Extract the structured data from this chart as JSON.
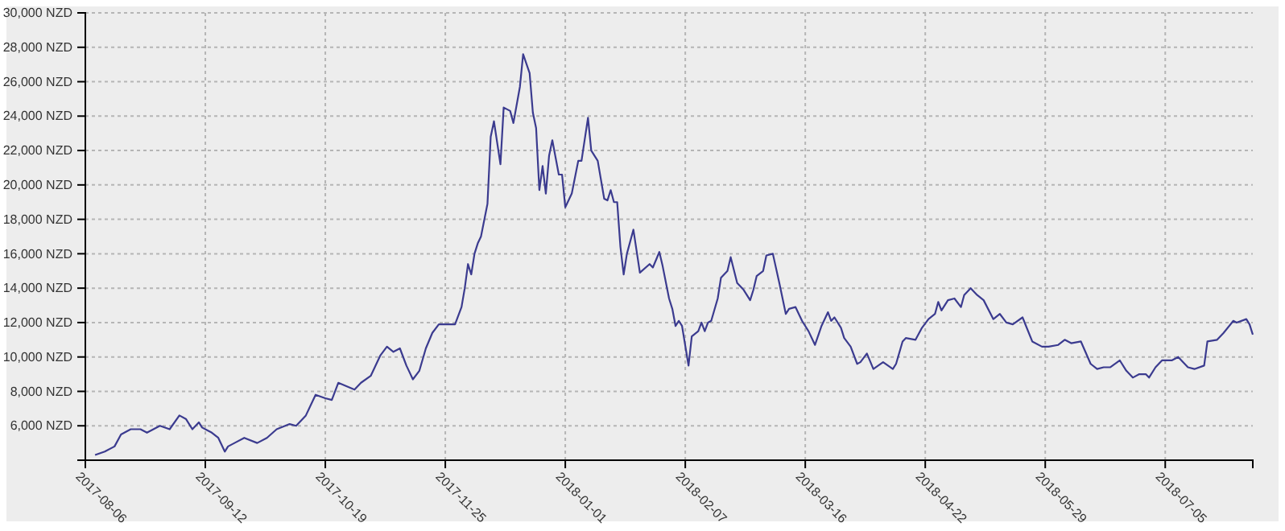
{
  "chart_data": {
    "type": "line",
    "grid": true,
    "line_style": "solid",
    "marker": "none",
    "xlim": [
      "2017-08-06",
      "2018-08-01"
    ],
    "xticks": [
      {
        "value": "2017-08-06",
        "label": "2017-08-06"
      },
      {
        "value": "2017-09-12",
        "label": "2017-09-12"
      },
      {
        "value": "2017-10-19",
        "label": "2017-10-19"
      },
      {
        "value": "2017-11-25",
        "label": "2017-11-25"
      },
      {
        "value": "2018-01-01",
        "label": "2018-01-01"
      },
      {
        "value": "2018-02-07",
        "label": "2018-02-07"
      },
      {
        "value": "2018-03-16",
        "label": "2018-03-16"
      },
      {
        "value": "2018-04-22",
        "label": "2018-04-22"
      },
      {
        "value": "2018-05-29",
        "label": "2018-05-29"
      },
      {
        "value": "2018-07-05",
        "label": "2018-07-05"
      }
    ],
    "ylim": [
      4000,
      30000
    ],
    "yticks": [
      {
        "value": 6000,
        "label": "6,000 NZD"
      },
      {
        "value": 8000,
        "label": "8,000 NZD"
      },
      {
        "value": 10000,
        "label": "10,000 NZD"
      },
      {
        "value": 12000,
        "label": "12,000 NZD"
      },
      {
        "value": 14000,
        "label": "14,000 NZD"
      },
      {
        "value": 16000,
        "label": "16,000 NZD"
      },
      {
        "value": 18000,
        "label": "18,000 NZD"
      },
      {
        "value": 20000,
        "label": "20,000 NZD"
      },
      {
        "value": 22000,
        "label": "22,000 NZD"
      },
      {
        "value": 24000,
        "label": "24,000 NZD"
      },
      {
        "value": 26000,
        "label": "26,000 NZD"
      },
      {
        "value": 28000,
        "label": "28,000 NZD"
      },
      {
        "value": 30000,
        "label": "30,000 NZD"
      }
    ],
    "series": [
      {
        "color": "#3b3b8f",
        "x": [
          "2017-08-09",
          "2017-08-12",
          "2017-08-15",
          "2017-08-17",
          "2017-08-20",
          "2017-08-23",
          "2017-08-25",
          "2017-08-27",
          "2017-08-29",
          "2017-09-01",
          "2017-09-04",
          "2017-09-06",
          "2017-09-08",
          "2017-09-10",
          "2017-09-11",
          "2017-09-14",
          "2017-09-16",
          "2017-09-18",
          "2017-09-19",
          "2017-09-21",
          "2017-09-24",
          "2017-09-28",
          "2017-10-01",
          "2017-10-04",
          "2017-10-08",
          "2017-10-10",
          "2017-10-13",
          "2017-10-16",
          "2017-10-19",
          "2017-10-21",
          "2017-10-23",
          "2017-10-28",
          "2017-10-30",
          "2017-11-02",
          "2017-11-05",
          "2017-11-07",
          "2017-11-09",
          "2017-11-11",
          "2017-11-13",
          "2017-11-15",
          "2017-11-17",
          "2017-11-19",
          "2017-11-21",
          "2017-11-23",
          "2017-11-26",
          "2017-11-28",
          "2017-11-30",
          "2017-12-01",
          "2017-12-02",
          "2017-12-03",
          "2017-12-04",
          "2017-12-05",
          "2017-12-06",
          "2017-12-08",
          "2017-12-09",
          "2017-12-10",
          "2017-12-12",
          "2017-12-13",
          "2017-12-15",
          "2017-12-16",
          "2017-12-18",
          "2017-12-19",
          "2017-12-21",
          "2017-12-22",
          "2017-12-23",
          "2017-12-24",
          "2017-12-25",
          "2017-12-26",
          "2017-12-27",
          "2017-12-28",
          "2017-12-30",
          "2017-12-31",
          "2018-01-01",
          "2018-01-03",
          "2018-01-05",
          "2018-01-06",
          "2018-01-08",
          "2018-01-09",
          "2018-01-11",
          "2018-01-13",
          "2018-01-14",
          "2018-01-15",
          "2018-01-16",
          "2018-01-17",
          "2018-01-18",
          "2018-01-19",
          "2018-01-20",
          "2018-01-22",
          "2018-01-24",
          "2018-01-27",
          "2018-01-28",
          "2018-01-30",
          "2018-01-31",
          "2018-02-02",
          "2018-02-03",
          "2018-02-04",
          "2018-02-05",
          "2018-02-06",
          "2018-02-08",
          "2018-02-09",
          "2018-02-11",
          "2018-02-12",
          "2018-02-13",
          "2018-02-14",
          "2018-02-15",
          "2018-02-17",
          "2018-02-18",
          "2018-02-20",
          "2018-02-21",
          "2018-02-23",
          "2018-02-25",
          "2018-02-27",
          "2018-02-28",
          "2018-03-01",
          "2018-03-03",
          "2018-03-04",
          "2018-03-06",
          "2018-03-08",
          "2018-03-10",
          "2018-03-11",
          "2018-03-13",
          "2018-03-15",
          "2018-03-17",
          "2018-03-19",
          "2018-03-21",
          "2018-03-23",
          "2018-03-24",
          "2018-03-25",
          "2018-03-27",
          "2018-03-28",
          "2018-03-30",
          "2018-04-01",
          "2018-04-02",
          "2018-04-04",
          "2018-04-06",
          "2018-04-09",
          "2018-04-12",
          "2018-04-13",
          "2018-04-15",
          "2018-04-16",
          "2018-04-19",
          "2018-04-21",
          "2018-04-23",
          "2018-04-25",
          "2018-04-26",
          "2018-04-27",
          "2018-04-29",
          "2018-05-01",
          "2018-05-03",
          "2018-05-04",
          "2018-05-06",
          "2018-05-08",
          "2018-05-10",
          "2018-05-13",
          "2018-05-15",
          "2018-05-17",
          "2018-05-19",
          "2018-05-22",
          "2018-05-25",
          "2018-05-28",
          "2018-05-30",
          "2018-06-02",
          "2018-06-04",
          "2018-06-06",
          "2018-06-09",
          "2018-06-12",
          "2018-06-14",
          "2018-06-16",
          "2018-06-18",
          "2018-06-21",
          "2018-06-23",
          "2018-06-25",
          "2018-06-27",
          "2018-06-29",
          "2018-06-30",
          "2018-07-02",
          "2018-07-04",
          "2018-07-07",
          "2018-07-09",
          "2018-07-12",
          "2018-07-14",
          "2018-07-17",
          "2018-07-18",
          "2018-07-21",
          "2018-07-23",
          "2018-07-26",
          "2018-07-27",
          "2018-07-30",
          "2018-07-31",
          "2018-08-01"
        ],
        "values": [
          4300,
          4500,
          4800,
          5500,
          5800,
          5800,
          5600,
          5800,
          6000,
          5800,
          6600,
          6400,
          5800,
          6200,
          5900,
          5600,
          5300,
          4500,
          4800,
          5000,
          5300,
          5000,
          5300,
          5800,
          6100,
          6000,
          6600,
          7800,
          7600,
          7500,
          8500,
          8100,
          8500,
          8900,
          10100,
          10600,
          10300,
          10500,
          9500,
          8700,
          9200,
          10500,
          11400,
          11900,
          11900,
          11900,
          12900,
          14000,
          15400,
          14800,
          16000,
          16600,
          17000,
          18900,
          22800,
          23700,
          21200,
          24500,
          24300,
          23600,
          25700,
          27600,
          26500,
          24200,
          23300,
          19700,
          21100,
          19500,
          21700,
          22600,
          20600,
          20600,
          18700,
          19500,
          21400,
          21400,
          23900,
          22000,
          21400,
          19200,
          19100,
          19700,
          19000,
          19000,
          16400,
          14800,
          16000,
          17400,
          14900,
          15400,
          15200,
          16100,
          15300,
          13400,
          12800,
          11800,
          12100,
          11800,
          9500,
          11200,
          11500,
          12000,
          11500,
          12000,
          12100,
          13400,
          14600,
          15000,
          15800,
          14300,
          13900,
          13300,
          13900,
          14700,
          15000,
          15900,
          16000,
          14300,
          12500,
          12800,
          12900,
          12100,
          11500,
          10700,
          11800,
          12600,
          12100,
          12300,
          11700,
          11100,
          10600,
          9600,
          9700,
          10200,
          9300,
          9700,
          9300,
          9600,
          10900,
          11100,
          11000,
          11700,
          12200,
          12500,
          13200,
          12700,
          13300,
          13400,
          12900,
          13600,
          14000,
          13600,
          13300,
          12200,
          12500,
          12000,
          11900,
          12300,
          10900,
          10600,
          10600,
          10700,
          11000,
          10800,
          10900,
          9600,
          9300,
          9400,
          9400,
          9800,
          9200,
          8800,
          9000,
          9000,
          8800,
          9400,
          9800,
          9800,
          10000,
          9400,
          9300,
          9500,
          10900,
          11000,
          11400,
          12100,
          12000,
          12200,
          11900,
          11300
        ]
      }
    ]
  }
}
